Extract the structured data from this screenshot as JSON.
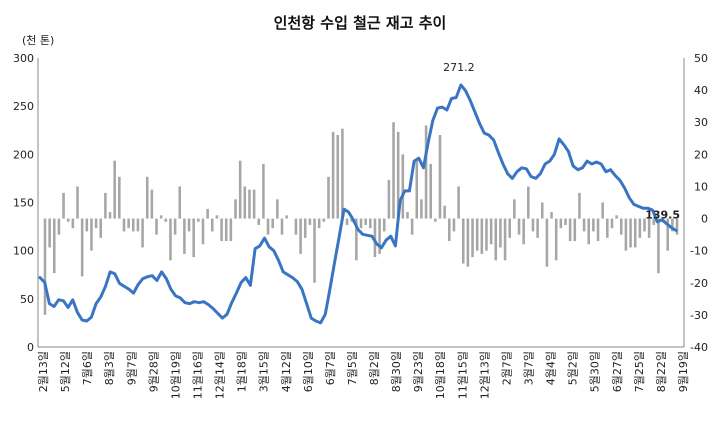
{
  "chart_data": {
    "type": "bar+line",
    "title": "인천항 수입 철근 재고 추이",
    "unit_label": "(천 톤)",
    "left_axis": {
      "ylim": [
        0,
        300
      ],
      "ticks": [
        0,
        50,
        100,
        150,
        200,
        250,
        300
      ]
    },
    "right_axis": {
      "ylim": [
        -40,
        50
      ],
      "ticks": [
        -40,
        -30,
        -20,
        -10,
        0,
        10,
        20,
        30,
        40,
        50
      ]
    },
    "x_tick_labels": [
      "2월13일",
      "5월12일",
      "7월6일",
      "8월3일",
      "9월7일",
      "9월28일",
      "10월19일",
      "11월16일",
      "12월14일",
      "1월18일",
      "3월15일",
      "4월12일",
      "6월10일",
      "6월7일",
      "7월5일",
      "8월2일",
      "8월30일",
      "9월23일",
      "10월18일",
      "11월15일",
      "12월13일",
      "2월7일",
      "3월7일",
      "4월4일",
      "5월2일",
      "5월30일",
      "6월27일",
      "7월25일",
      "8월22일",
      "9월19일"
    ],
    "line_series": {
      "name": "",
      "color": "#3a75c4",
      "values": [
        72,
        67,
        45,
        42,
        49,
        48,
        41,
        49,
        36,
        28,
        27,
        31,
        45,
        52,
        63,
        78,
        76,
        66,
        63,
        60,
        56,
        65,
        71,
        73,
        74,
        69,
        78,
        71,
        60,
        53,
        51,
        46,
        45,
        47,
        46,
        47,
        44,
        40,
        35,
        30,
        34,
        46,
        56,
        67,
        72,
        64,
        102,
        105,
        113,
        104,
        100,
        90,
        78,
        75,
        72,
        68,
        60,
        45,
        30,
        27,
        25,
        34,
        60,
        88,
        115,
        143,
        140,
        132,
        122,
        117,
        116,
        115,
        107,
        103,
        111,
        115,
        105,
        152,
        162,
        162,
        193,
        196,
        186,
        212,
        235,
        248,
        249,
        246,
        258,
        259,
        272,
        266,
        256,
        244,
        232,
        222,
        220,
        215,
        202,
        190,
        180,
        175,
        182,
        186,
        185,
        177,
        175,
        180,
        190,
        193,
        200,
        216,
        210,
        203,
        188,
        184,
        186,
        193,
        190,
        192,
        190,
        182,
        184,
        178,
        173,
        165,
        155,
        148,
        146,
        144,
        144,
        142,
        130,
        132,
        128,
        124,
        121
      ]
    },
    "bar_series": {
      "name": "",
      "color": "#a6a6a6",
      "values": [
        0,
        -30,
        -9,
        -17,
        -5,
        8,
        -1,
        -3,
        10,
        -18,
        -4,
        -10,
        -3,
        -6,
        8,
        2,
        18,
        13,
        -4,
        -3,
        -4,
        -4,
        -9,
        13,
        9,
        -5,
        1,
        -1,
        -13,
        -5,
        10,
        -11,
        -4,
        -12,
        -1,
        -8,
        3,
        -4,
        1,
        -7,
        -7,
        -7,
        6,
        18,
        10,
        9,
        9,
        -2,
        17,
        -5,
        -3,
        6,
        -5,
        1,
        0,
        -5,
        -11,
        -6,
        -2,
        -20,
        -3,
        -1,
        13,
        27,
        26,
        28,
        -2,
        -1,
        -13,
        -3,
        -2,
        -3,
        -12,
        -11,
        -4,
        12,
        30,
        27,
        20,
        2,
        -5,
        18,
        6,
        29,
        17,
        -1,
        26,
        4,
        -7,
        -4,
        10,
        -14,
        -15,
        -12,
        -10,
        -11,
        -10,
        -8,
        -13,
        -9,
        -13,
        -6,
        6,
        -5,
        -8,
        10,
        -4,
        -6,
        5,
        -15,
        2,
        -13,
        -3,
        -2,
        -7,
        -7,
        8,
        -4,
        -8,
        -4,
        -7,
        5,
        -6,
        -3,
        1,
        -5,
        -10,
        -9,
        -9,
        -6,
        -4,
        -6,
        -2,
        -17,
        -1,
        -10,
        -4,
        -5,
        0
      ]
    },
    "annotations": [
      {
        "text": "271.2"
      },
      {
        "text": "139.5"
      }
    ]
  }
}
